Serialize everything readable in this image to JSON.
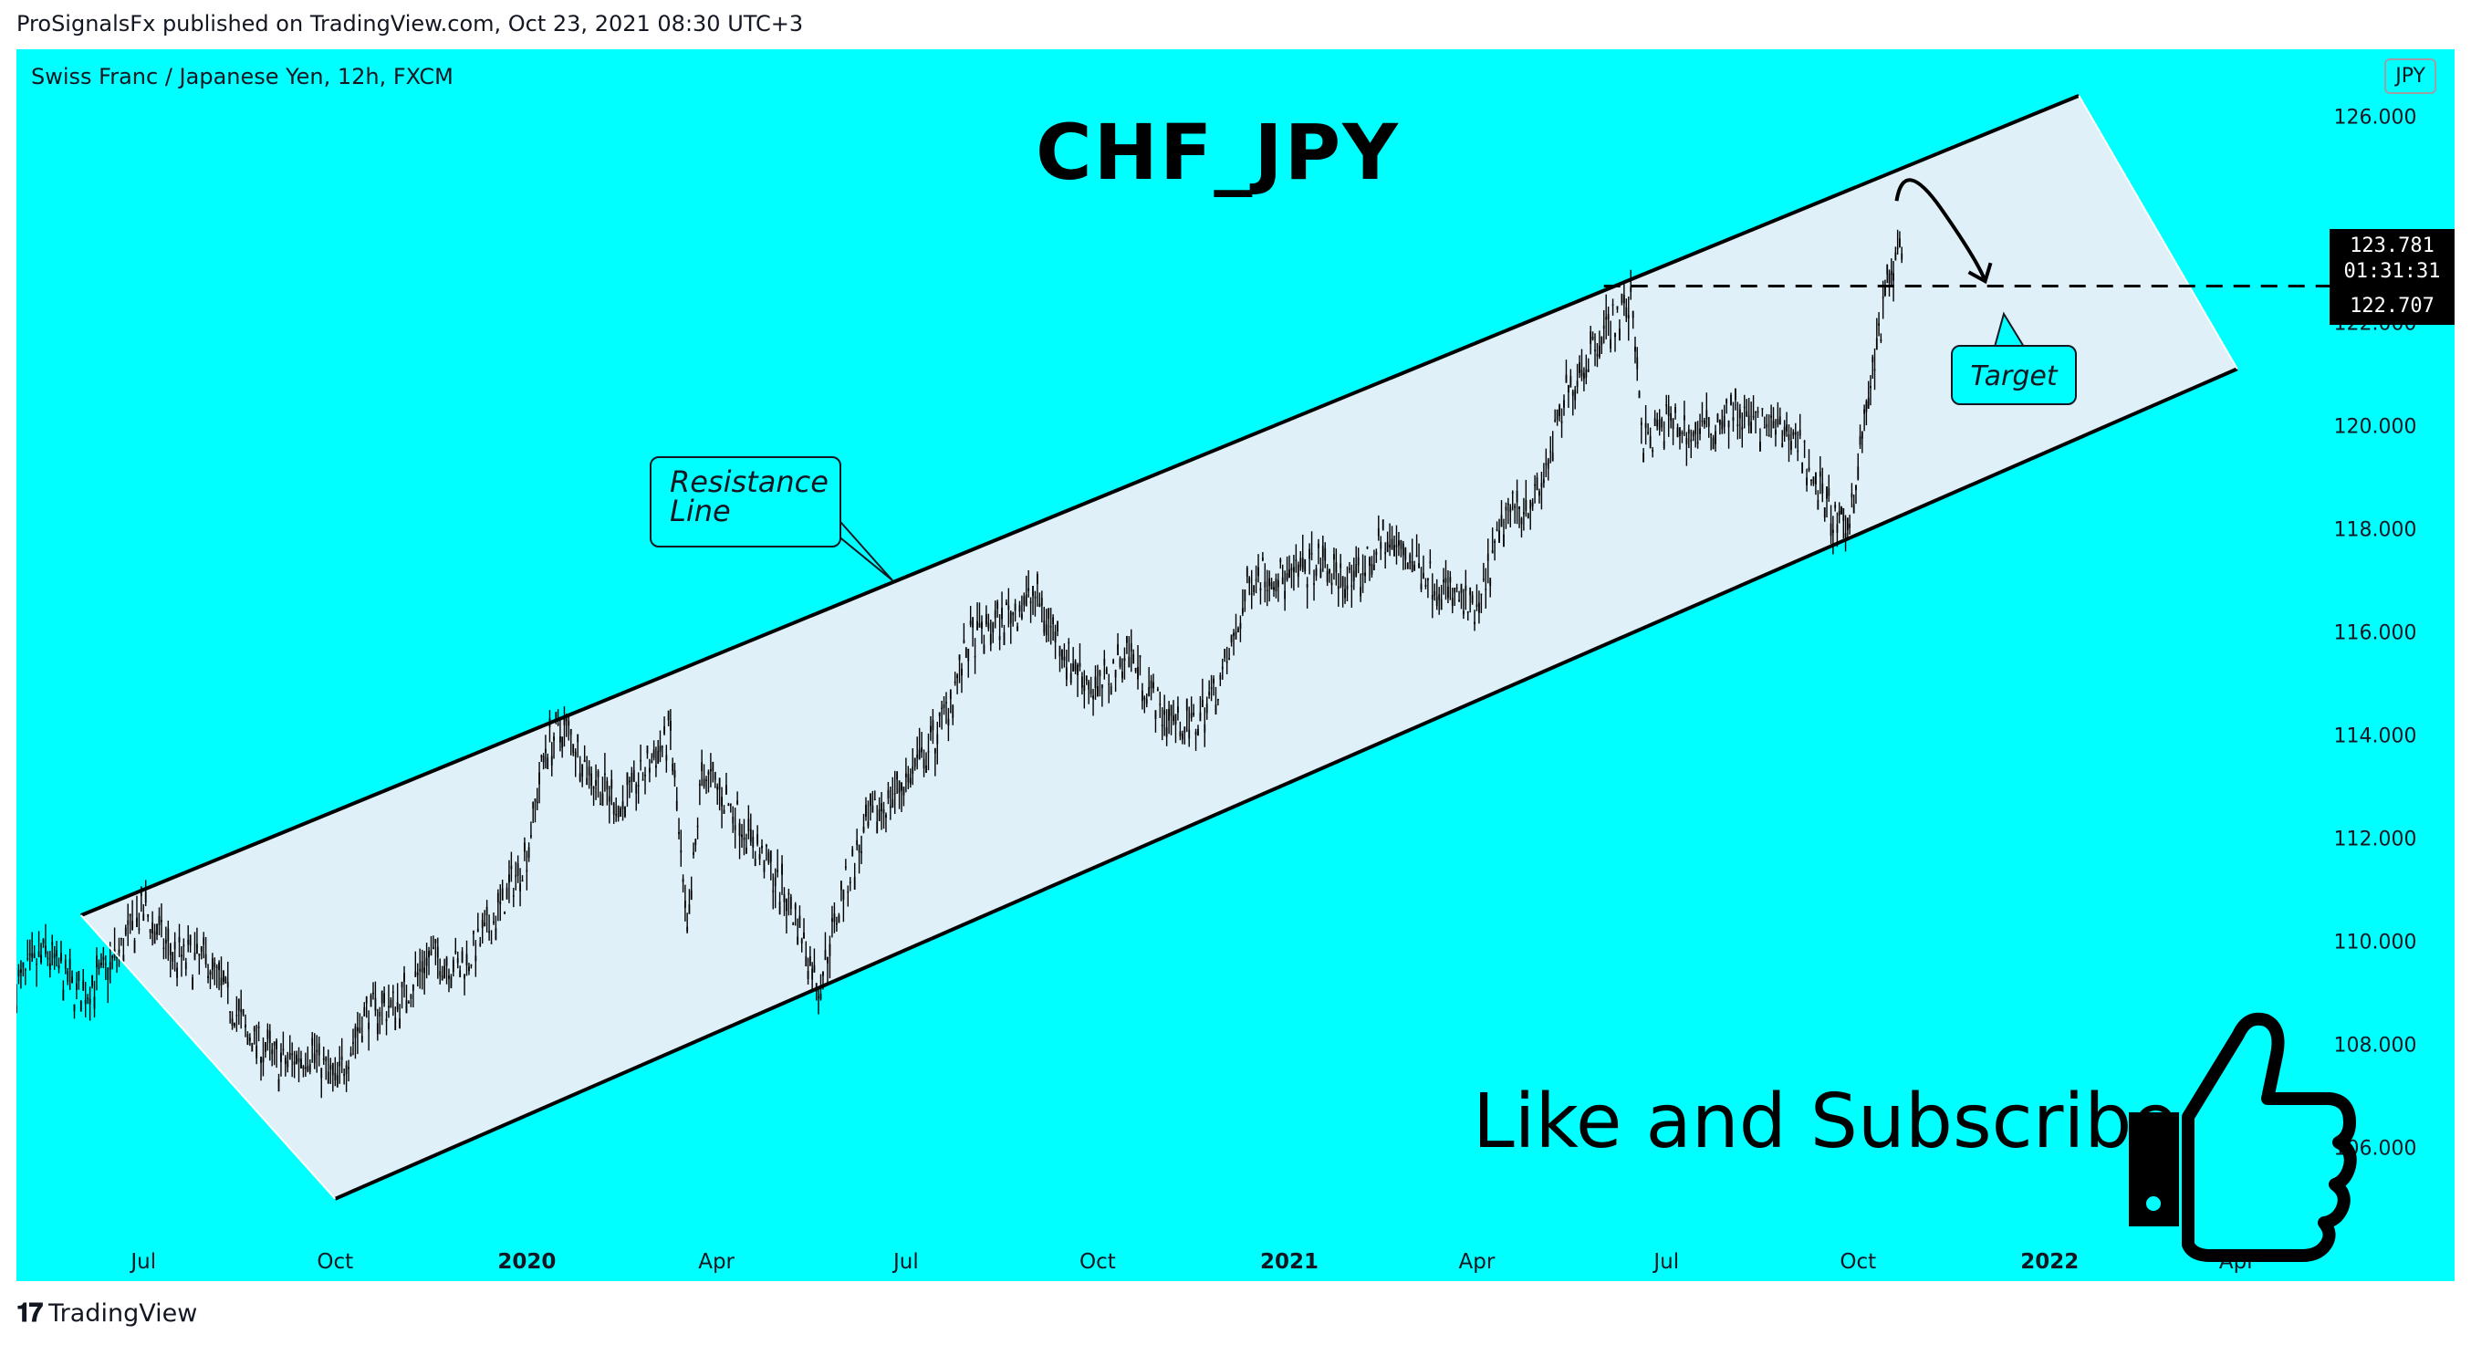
{
  "header": {
    "published": "ProSignalsFx published on TradingView.com, Oct 23, 2021 08:30 UTC+3"
  },
  "chart": {
    "symbol": "Swiss Franc / Japanese Yen, 12h, FXCM",
    "currency": "JPY",
    "title": "CHF_JPY",
    "like_subscribe": "Like and Subscribe",
    "resistance_label_line1": "Resistance",
    "resistance_label_line2": "Line",
    "target_label": "Target",
    "price_current": "123.781",
    "countdown": "01:31:31",
    "price_target": "122.707"
  },
  "footer": {
    "brand": "TradingView"
  },
  "colors": {
    "background": "#00ffff",
    "channel_fill": "#dff0f8",
    "candles": "#000000"
  },
  "icons": {
    "thumbs_up": "thumbs-up-icon",
    "logo": "tradingview-logo-icon"
  },
  "chart_data": {
    "type": "line",
    "style": "candlestick",
    "timeframe": "12h",
    "ylim": [
      104.2,
      127.3
    ],
    "y_ticks": [
      "106.000",
      "108.000",
      "110.000",
      "112.000",
      "114.000",
      "116.000",
      "118.000",
      "120.000",
      "122.000",
      "126.000"
    ],
    "x_ticks": [
      "Jul",
      "Oct",
      "2020",
      "Apr",
      "Jul",
      "Oct",
      "2021",
      "Apr",
      "Jul",
      "Oct",
      "2022",
      "Apr"
    ],
    "x_range": [
      "2019-05-01",
      "2022-04-30"
    ],
    "price_path": [
      [
        "2019-05-01",
        109.1
      ],
      [
        "2019-05-15",
        109.8
      ],
      [
        "2019-06-01",
        108.9
      ],
      [
        "2019-06-15",
        109.5
      ],
      [
        "2019-07-01",
        110.6
      ],
      [
        "2019-07-15",
        109.7
      ],
      [
        "2019-08-01",
        109.6
      ],
      [
        "2019-08-20",
        108.2
      ],
      [
        "2019-09-05",
        107.6
      ],
      [
        "2019-09-20",
        107.9
      ],
      [
        "2019-10-01",
        107.2
      ],
      [
        "2019-10-15",
        108.6
      ],
      [
        "2019-11-01",
        108.8
      ],
      [
        "2019-11-15",
        109.7
      ],
      [
        "2019-12-01",
        109.5
      ],
      [
        "2019-12-15",
        110.3
      ],
      [
        "2020-01-01",
        111.7
      ],
      [
        "2020-01-10",
        113.8
      ],
      [
        "2020-01-20",
        114.1
      ],
      [
        "2020-02-01",
        113.2
      ],
      [
        "2020-02-15",
        112.6
      ],
      [
        "2020-03-01",
        113.5
      ],
      [
        "2020-03-10",
        114.0
      ],
      [
        "2020-03-18",
        110.0
      ],
      [
        "2020-03-25",
        113.3
      ],
      [
        "2020-04-10",
        112.5
      ],
      [
        "2020-04-25",
        111.5
      ],
      [
        "2020-05-10",
        110.4
      ],
      [
        "2020-05-20",
        109.1
      ],
      [
        "2020-06-01",
        111.0
      ],
      [
        "2020-06-15",
        112.4
      ],
      [
        "2020-07-01",
        113.1
      ],
      [
        "2020-07-15",
        113.9
      ],
      [
        "2020-08-01",
        115.8
      ],
      [
        "2020-08-15",
        116.2
      ],
      [
        "2020-09-01",
        116.7
      ],
      [
        "2020-09-15",
        115.6
      ],
      [
        "2020-10-01",
        114.8
      ],
      [
        "2020-10-15",
        115.7
      ],
      [
        "2020-11-01",
        114.4
      ],
      [
        "2020-11-15",
        114.1
      ],
      [
        "2020-12-01",
        115.2
      ],
      [
        "2020-12-15",
        117.2
      ],
      [
        "2021-01-01",
        117.0
      ],
      [
        "2021-01-15",
        117.3
      ],
      [
        "2021-02-01",
        116.9
      ],
      [
        "2021-02-15",
        117.8
      ],
      [
        "2021-03-01",
        117.4
      ],
      [
        "2021-03-15",
        116.9
      ],
      [
        "2021-04-01",
        116.3
      ],
      [
        "2021-04-15",
        118.3
      ],
      [
        "2021-05-01",
        118.7
      ],
      [
        "2021-05-15",
        120.7
      ],
      [
        "2021-06-01",
        121.9
      ],
      [
        "2021-06-15",
        122.3
      ],
      [
        "2021-06-20",
        119.6
      ],
      [
        "2021-07-01",
        120.1
      ],
      [
        "2021-07-15",
        119.8
      ],
      [
        "2021-08-01",
        120.3
      ],
      [
        "2021-08-15",
        120.0
      ],
      [
        "2021-09-01",
        119.8
      ],
      [
        "2021-09-15",
        118.5
      ],
      [
        "2021-09-25",
        117.8
      ],
      [
        "2021-10-05",
        120.3
      ],
      [
        "2021-10-15",
        122.7
      ],
      [
        "2021-10-23",
        123.8
      ]
    ],
    "channel_upper": [
      [
        "2019-06-01",
        110.5
      ],
      [
        "2022-01-15",
        126.4
      ]
    ],
    "channel_lower": [
      [
        "2019-10-01",
        105.0
      ],
      [
        "2022-04-01",
        121.1
      ]
    ],
    "target_level": 122.707,
    "projection": [
      [
        "2021-10-23",
        124.8
      ],
      [
        "2021-11-10",
        124.2
      ],
      [
        "2021-12-01",
        122.8
      ]
    ],
    "annotations": [
      "Resistance Line",
      "Target"
    ]
  }
}
